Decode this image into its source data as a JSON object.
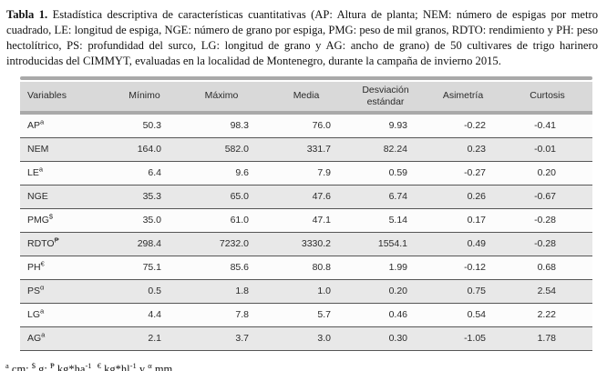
{
  "caption": {
    "label": "Tabla 1.",
    "text": "Estadística descriptiva de características cuantitativas (AP: Altura de planta; NEM: número de espigas por metro cuadrado, LE: longitud de espiga, NGE: número de grano por espiga, PMG: peso de mil granos, RDTO: rendimiento y PH: peso hectolítrico, PS: profundidad del surco, LG: longitud de grano y AG: ancho de grano) de 50 cultivares de trigo harinero introducidas del CIMMYT, evaluadas en la localidad de Montenegro, durante la campaña de invierno 2015."
  },
  "table": {
    "columns": [
      "Variables",
      "Mínimo",
      "Máximo",
      "Media",
      "Desviación estándar",
      "Asimetría",
      "Curtosis"
    ],
    "rows": [
      {
        "variable": "AP",
        "sup": "a",
        "minimo": "50.3",
        "maximo": "98.3",
        "media": "76.0",
        "desviacion": "9.93",
        "asimetria": "-0.22",
        "curtosis": "-0.41"
      },
      {
        "variable": "NEM",
        "sup": "",
        "minimo": "164.0",
        "maximo": "582.0",
        "media": "331.7",
        "desviacion": "82.24",
        "asimetria": "0.23",
        "curtosis": "-0.01"
      },
      {
        "variable": "LE",
        "sup": "a",
        "minimo": "6.4",
        "maximo": "9.6",
        "media": "7.9",
        "desviacion": "0.59",
        "asimetria": "-0.27",
        "curtosis": "0.20"
      },
      {
        "variable": "NGE",
        "sup": "",
        "minimo": "35.3",
        "maximo": "65.0",
        "media": "47.6",
        "desviacion": "6.74",
        "asimetria": "0.26",
        "curtosis": "-0.67"
      },
      {
        "variable": "PMG",
        "sup": "$",
        "minimo": "35.0",
        "maximo": "61.0",
        "media": "47.1",
        "desviacion": "5.14",
        "asimetria": "0.17",
        "curtosis": "-0.28"
      },
      {
        "variable": "RDTO",
        "sup": "₱",
        "minimo": "298.4",
        "maximo": "7232.0",
        "media": "3330.2",
        "desviacion": "1554.1",
        "asimetria": "0.49",
        "curtosis": "-0.28"
      },
      {
        "variable": "PH",
        "sup": "€",
        "minimo": "75.1",
        "maximo": "85.6",
        "media": "80.8",
        "desviacion": "1.99",
        "asimetria": "-0.12",
        "curtosis": "0.68"
      },
      {
        "variable": "PS",
        "sup": "α",
        "minimo": "0.5",
        "maximo": "1.8",
        "media": "1.0",
        "desviacion": "0.20",
        "asimetria": "0.75",
        "curtosis": "2.54"
      },
      {
        "variable": "LG",
        "sup": "a",
        "minimo": "4.4",
        "maximo": "7.8",
        "media": "5.7",
        "desviacion": "0.46",
        "asimetria": "0.54",
        "curtosis": "2.22"
      },
      {
        "variable": "AG",
        "sup": "a",
        "minimo": "2.1",
        "maximo": "3.7",
        "media": "3.0",
        "desviacion": "0.30",
        "asimetria": "-1.05",
        "curtosis": "1.78"
      }
    ]
  },
  "footnote": {
    "parts": [
      {
        "sup": true,
        "text": "a"
      },
      {
        "sup": false,
        "text": " cm; "
      },
      {
        "sup": true,
        "text": "$"
      },
      {
        "sup": false,
        "text": " g; "
      },
      {
        "sup": true,
        "text": "₱"
      },
      {
        "sup": false,
        "text": " kg*ha"
      },
      {
        "sup": true,
        "text": "-1"
      },
      {
        "sup": false,
        "text": ", "
      },
      {
        "sup": true,
        "text": "€"
      },
      {
        "sup": false,
        "text": " kg*hl"
      },
      {
        "sup": true,
        "text": "-1"
      },
      {
        "sup": false,
        "text": " y "
      },
      {
        "sup": true,
        "text": "α"
      },
      {
        "sup": false,
        "text": " mm"
      }
    ]
  }
}
